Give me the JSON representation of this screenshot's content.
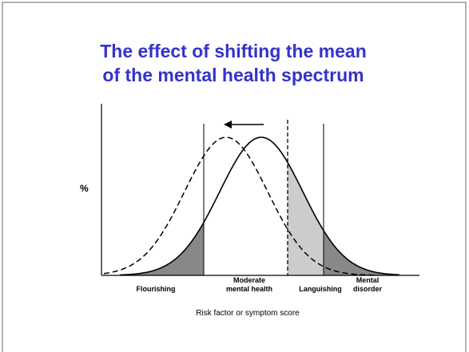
{
  "title": [
    "The effect of shifting the mean",
    "of the mental health spectrum"
  ],
  "y_label": "%",
  "regions": [
    {
      "lines": [
        "Flourishing"
      ]
    },
    {
      "lines": [
        "Moderate",
        "mental health"
      ]
    },
    {
      "lines": [
        "Languishing"
      ]
    },
    {
      "lines": [
        "Mental",
        "disorder"
      ]
    }
  ],
  "x_label": "Risk factor or symptom score"
}
